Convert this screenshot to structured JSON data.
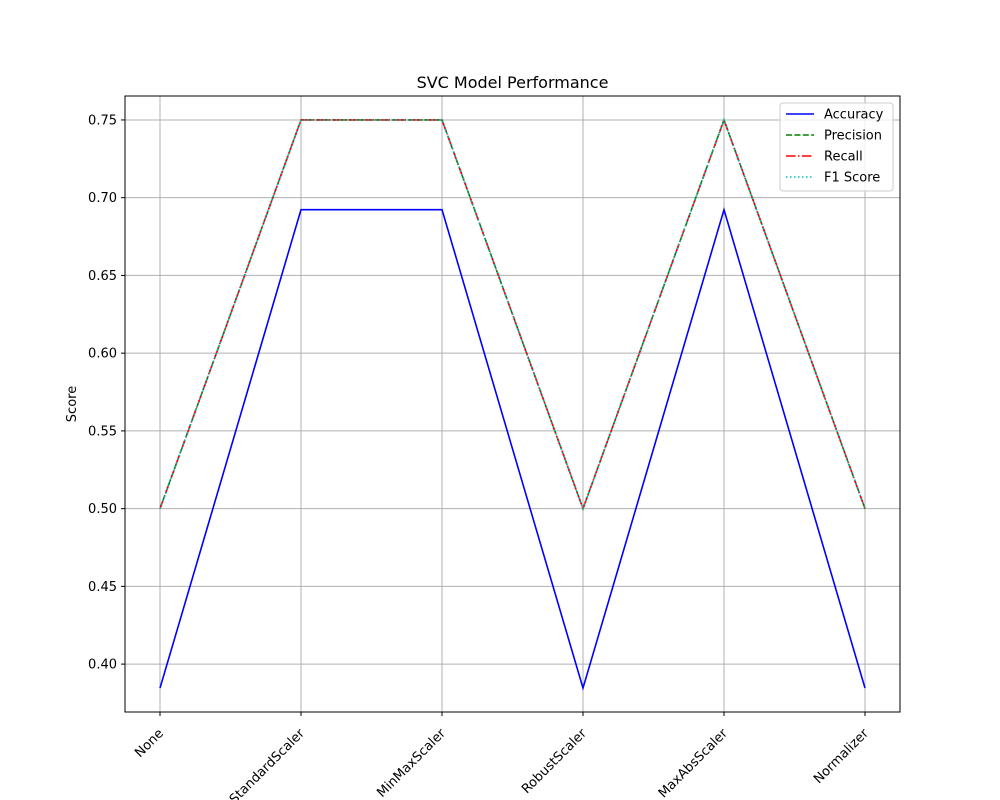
{
  "chart_data": {
    "type": "line",
    "title": "SVC Model Performance",
    "xlabel": "",
    "ylabel": "Score",
    "categories": [
      "None",
      "StandardScaler",
      "MinMaxScaler",
      "RobustScaler",
      "MaxAbsScaler",
      "Normalizer"
    ],
    "ylim": [
      0.3692,
      0.7654
    ],
    "yticks": [
      "0.40",
      "0.45",
      "0.50",
      "0.55",
      "0.60",
      "0.65",
      "0.70",
      "0.75"
    ],
    "grid": true,
    "legend_position": "top-right",
    "series": [
      {
        "name": "Accuracy",
        "values": [
          0.3846,
          0.6923,
          0.6923,
          0.3846,
          0.6923,
          0.3846
        ],
        "color": "#0000ff",
        "style": "solid"
      },
      {
        "name": "Precision",
        "values": [
          0.5,
          0.75,
          0.75,
          0.5,
          0.75,
          0.5
        ],
        "color": "#008000",
        "style": "dashed"
      },
      {
        "name": "Recall",
        "values": [
          0.5,
          0.75,
          0.75,
          0.5,
          0.75,
          0.5
        ],
        "color": "#ff0000",
        "style": "dashdot"
      },
      {
        "name": "F1 Score",
        "values": [
          0.5,
          0.75,
          0.75,
          0.5,
          0.75,
          0.5
        ],
        "color": "#00bfbf",
        "style": "dotted"
      }
    ]
  }
}
